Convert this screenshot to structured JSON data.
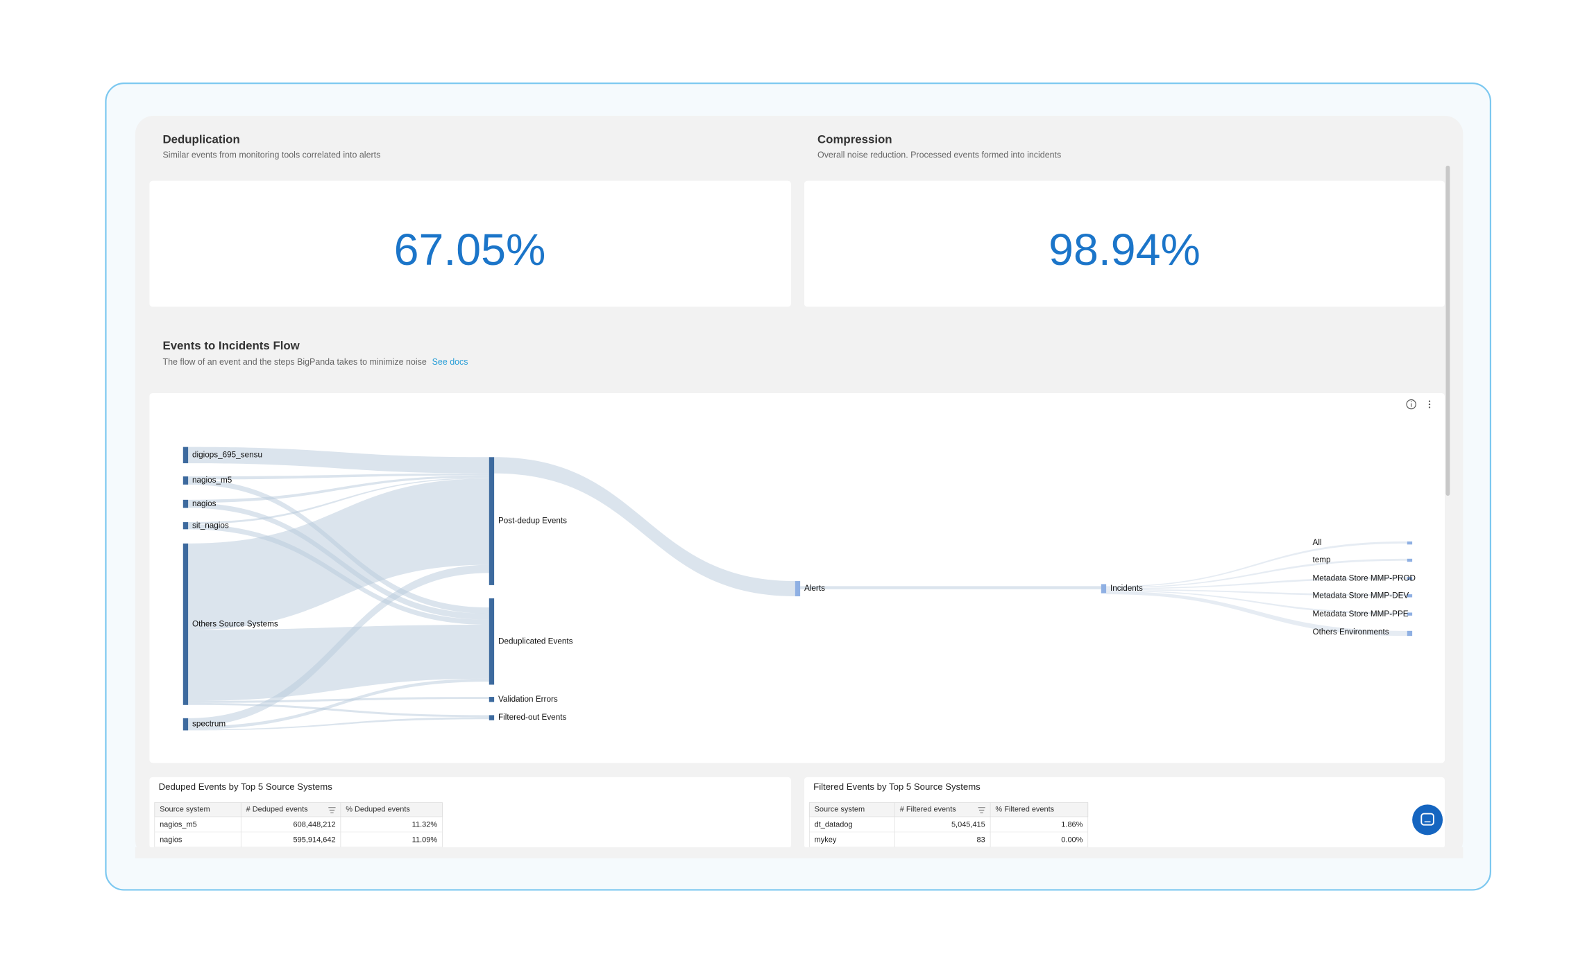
{
  "cards": [
    {
      "title": "Deduplication",
      "subtitle": "Similar events from monitoring tools correlated into alerts",
      "value": "67.05%"
    },
    {
      "title": "Compression",
      "subtitle": "Overall noise reduction. Processed events formed into incidents",
      "value": "98.94%"
    }
  ],
  "flow": {
    "title": "Events to Incidents Flow",
    "subtitle": "The flow of an event and the steps BigPanda takes to minimize noise",
    "link": "See docs",
    "nodes": [
      "digiops_695_sensu",
      "nagios_m5",
      "nagios",
      "sit_nagios",
      "Others Source Systems",
      "spectrum",
      "Post-dedup Events",
      "Deduplicated Events",
      "Validation Errors",
      "Filtered-out Events",
      "Alerts",
      "Incidents",
      "All",
      "temp",
      "Metadata Store MMP-PROD",
      "Metadata Store MMP-DEV",
      "Metadata Store MMP-PPE",
      "Others Environments"
    ]
  },
  "tables": [
    {
      "title": "Deduped Events by Top 5 Source Systems",
      "columns": [
        "Source system",
        "# Deduped events",
        "% Deduped events"
      ],
      "rows": [
        [
          "nagios_m5",
          "608,448,212",
          "11.32%"
        ],
        [
          "nagios",
          "595,914,642",
          "11.09%"
        ]
      ]
    },
    {
      "title": "Filtered Events by Top 5 Source Systems",
      "columns": [
        "Source system",
        "# Filtered events",
        "% Filtered events"
      ],
      "rows": [
        [
          "dt_datadog",
          "5,045,415",
          "1.86%"
        ],
        [
          "mykey",
          "83",
          "0.00%"
        ]
      ]
    }
  ]
}
